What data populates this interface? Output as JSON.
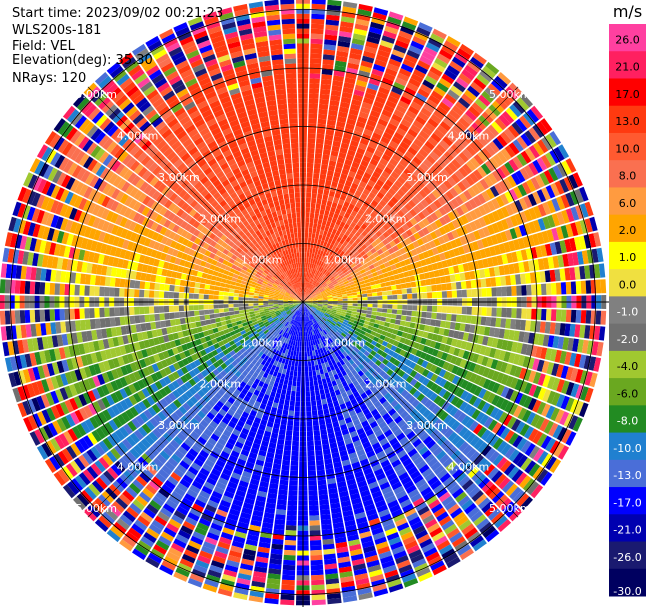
{
  "info": {
    "start_time": "Start time: 2023/09/02 00:21:23",
    "instrument": "WLS200s-181",
    "field": "Field: VEL",
    "elevation": "Elevation(deg): 35.30",
    "nrays": "NRays: 120"
  },
  "chart_data": {
    "type": "heatmap",
    "projection": "polar PPI scan",
    "field": "VEL",
    "units": "m/s",
    "rays": 120,
    "elevation_deg": 35.3,
    "range_rings_km": [
      1.0,
      2.0,
      3.0,
      4.0,
      5.0
    ],
    "range_ring_labels": [
      "1.00km",
      "2.00km",
      "3.00km",
      "4.00km",
      "5.00km"
    ],
    "max_range_km": 5.2,
    "dominant_pattern": {
      "north_sector": "positive 10 to 21 m/s (red-orange)",
      "south_sector": "negative -8 to -17 m/s (blue)",
      "east_west_axis": "near zero (grey / yellow / green)",
      "outer_ranges": "noisy, all colors"
    },
    "colorbar": {
      "label": "m/s",
      "ticks": [
        "26.0",
        "21.0",
        "17.0",
        "13.0",
        "10.0",
        "8.0",
        "6.0",
        "2.0",
        "1.0",
        "0.0",
        "-1.0",
        "-2.0",
        "-4.0",
        "-6.0",
        "-8.0",
        "-10.0",
        "-13.0",
        "-17.0",
        "-21.0",
        "-26.0",
        "-30.0"
      ],
      "colors": [
        "#ff40a0",
        "#ff2060",
        "#ff0000",
        "#ff3a10",
        "#ff5a30",
        "#fa7050",
        "#ff9b40",
        "#ffa500",
        "#ffff00",
        "#f0e040",
        "#808080",
        "#707070",
        "#a0c830",
        "#6aa820",
        "#228b22",
        "#2080d0",
        "#4a6ed8",
        "#0000ff",
        "#0000b0",
        "#1a1a70",
        "#000060"
      ]
    }
  }
}
